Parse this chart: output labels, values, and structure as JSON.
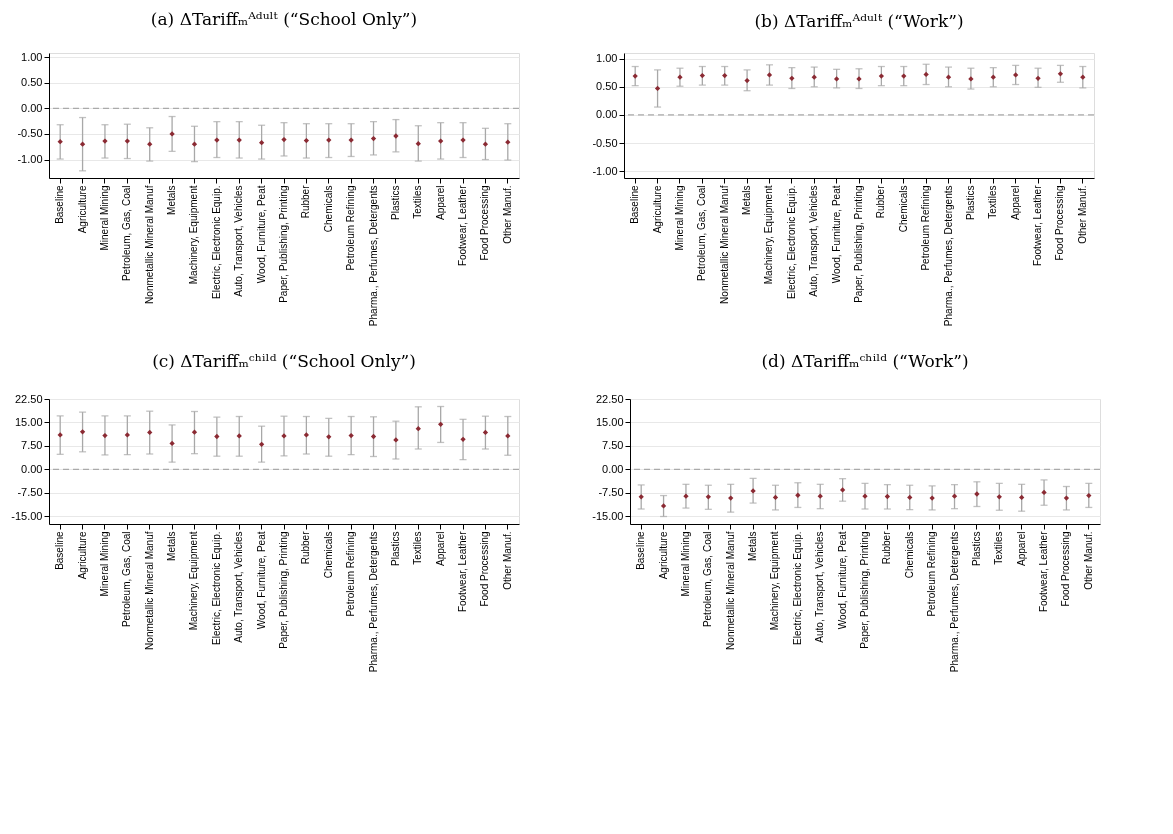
{
  "chart_data": [
    {
      "type": "scatter",
      "title": "(a) ΔTariffₘᴬᵈᵘˡᵗ (“School Only”)",
      "categories": [
        "Baseline",
        "Agriculture",
        "Mineral Mining",
        "Petroleum, Gas, Coal",
        "Nonmetallic Mineral Manuf",
        "Metals",
        "Machinery, Equipment",
        "Electric, Electronic Equip.",
        "Auto, Transport, Vehicles",
        "Wood, Furniture, Peat",
        "Paper, Publishing, Printing",
        "Rubber",
        "Chemicals",
        "Petroleum Refining",
        "Pharma., Perfumes, Detergents",
        "Plastics",
        "Textiles",
        "Apparel",
        "Footwear, Leather",
        "Food Processing",
        "Other Manuf."
      ],
      "color": "#8b2a33",
      "marker": "diamond",
      "values": [
        -0.65,
        -0.7,
        -0.64,
        -0.64,
        -0.7,
        -0.5,
        -0.7,
        -0.62,
        -0.62,
        -0.67,
        -0.61,
        -0.63,
        -0.62,
        -0.62,
        -0.59,
        -0.54,
        -0.69,
        -0.64,
        -0.62,
        -0.7,
        -0.66
      ],
      "errors": [
        [
          -0.99,
          -0.32
        ],
        [
          -1.22,
          -0.18
        ],
        [
          -0.97,
          -0.32
        ],
        [
          -0.98,
          -0.31
        ],
        [
          -1.03,
          -0.38
        ],
        [
          -0.84,
          -0.16
        ],
        [
          -1.04,
          -0.35
        ],
        [
          -0.96,
          -0.26
        ],
        [
          -0.97,
          -0.26
        ],
        [
          -0.99,
          -0.33
        ],
        [
          -0.93,
          -0.28
        ],
        [
          -0.97,
          -0.3
        ],
        [
          -0.96,
          -0.3
        ],
        [
          -0.94,
          -0.3
        ],
        [
          -0.91,
          -0.26
        ],
        [
          -0.85,
          -0.22
        ],
        [
          -1.03,
          -0.34
        ],
        [
          -0.99,
          -0.28
        ],
        [
          -0.96,
          -0.28
        ],
        [
          -1.0,
          -0.39
        ],
        [
          -1.01,
          -0.3
        ]
      ],
      "ylim": [
        -1.36,
        1.08
      ],
      "yticks": [
        {
          "value": -1,
          "label": "-1.00"
        },
        {
          "value": -0.5,
          "label": "-0.50"
        },
        {
          "value": 0,
          "label": "0.00"
        },
        {
          "value": 0.5,
          "label": "0.50"
        },
        {
          "value": 1,
          "label": "1.00"
        }
      ],
      "grid": "y",
      "ref_lines": [
        {
          "axis": "y",
          "value": 0,
          "line_style": "dashed",
          "color": "#aaaaaa"
        }
      ]
    },
    {
      "type": "scatter",
      "title": "(b) ΔTariffₘᴬᵈᵘˡᵗ (“Work”)",
      "categories": [
        "Baseline",
        "Agriculture",
        "Mineral Mining",
        "Petroleum, Gas, Coal",
        "Nonmetallic Mineral Manuf",
        "Metals",
        "Machinery, Equipment",
        "Electric, Electronic Equip.",
        "Auto, Transport, Vehicles",
        "Wood, Furniture, Peat",
        "Paper, Publishing, Printing",
        "Rubber",
        "Chemicals",
        "Petroleum Refining",
        "Pharma., Perfumes, Detergents",
        "Plastics",
        "Textiles",
        "Apparel",
        "Footwear, Leather",
        "Food Processing",
        "Other Manuf."
      ],
      "color": "#8b2a33",
      "marker": "diamond",
      "values": [
        0.69,
        0.47,
        0.67,
        0.7,
        0.7,
        0.61,
        0.71,
        0.65,
        0.67,
        0.64,
        0.64,
        0.69,
        0.69,
        0.72,
        0.67,
        0.64,
        0.67,
        0.71,
        0.65,
        0.73,
        0.67
      ],
      "errors": [
        [
          0.52,
          0.86
        ],
        [
          0.14,
          0.8
        ],
        [
          0.51,
          0.83
        ],
        [
          0.53,
          0.86
        ],
        [
          0.53,
          0.86
        ],
        [
          0.43,
          0.8
        ],
        [
          0.53,
          0.89
        ],
        [
          0.47,
          0.84
        ],
        [
          0.5,
          0.85
        ],
        [
          0.48,
          0.81
        ],
        [
          0.47,
          0.82
        ],
        [
          0.52,
          0.86
        ],
        [
          0.52,
          0.86
        ],
        [
          0.54,
          0.9
        ],
        [
          0.5,
          0.85
        ],
        [
          0.46,
          0.83
        ],
        [
          0.5,
          0.84
        ],
        [
          0.54,
          0.88
        ],
        [
          0.49,
          0.83
        ],
        [
          0.58,
          0.88
        ],
        [
          0.48,
          0.86
        ]
      ],
      "ylim": [
        -1.12,
        1.1
      ],
      "yticks": [
        {
          "value": -1,
          "label": "-1.00"
        },
        {
          "value": -0.5,
          "label": "-0.50"
        },
        {
          "value": 0,
          "label": "0.00"
        },
        {
          "value": 0.5,
          "label": "0.50"
        },
        {
          "value": 1,
          "label": "1.00"
        }
      ],
      "grid": "y",
      "ref_lines": [
        {
          "axis": "y",
          "value": 0,
          "line_style": "dashed",
          "color": "#aaaaaa"
        }
      ]
    },
    {
      "type": "scatter",
      "title": "(c) ΔTariffₘᶜʰⁱˡᵈ (“School Only”)",
      "categories": [
        "Baseline",
        "Agriculture",
        "Mineral Mining",
        "Petroleum, Gas, Coal",
        "Nonmetallic Mineral Manuf",
        "Metals",
        "Machinery, Equipment",
        "Electric, Electronic Equip.",
        "Auto, Transport, Vehicles",
        "Wood, Furniture, Peat",
        "Paper, Publishing, Printing",
        "Rubber",
        "Chemicals",
        "Petroleum Refining",
        "Pharma., Perfumes, Detergents",
        "Plastics",
        "Textiles",
        "Apparel",
        "Footwear, Leather",
        "Food Processing",
        "Other Manuf."
      ],
      "color": "#8b2a33",
      "marker": "diamond",
      "values": [
        11.0,
        12.0,
        10.8,
        11.0,
        11.8,
        8.3,
        11.9,
        10.5,
        10.7,
        8.0,
        10.7,
        11.0,
        10.4,
        10.8,
        10.5,
        9.4,
        13.0,
        14.4,
        9.6,
        11.8,
        10.7
      ],
      "errors": [
        [
          4.8,
          17.1
        ],
        [
          5.6,
          18.3
        ],
        [
          4.6,
          17.1
        ],
        [
          4.7,
          17.1
        ],
        [
          4.9,
          18.6
        ],
        [
          2.3,
          14.2
        ],
        [
          5.0,
          18.5
        ],
        [
          4.2,
          16.7
        ],
        [
          4.2,
          16.9
        ],
        [
          2.3,
          13.8
        ],
        [
          4.3,
          17.0
        ],
        [
          4.9,
          16.9
        ],
        [
          4.2,
          16.3
        ],
        [
          4.7,
          16.9
        ],
        [
          4.1,
          16.8
        ],
        [
          3.3,
          15.4
        ],
        [
          6.5,
          20.0
        ],
        [
          8.6,
          20.1
        ],
        [
          3.1,
          16.0
        ],
        [
          6.5,
          17.0
        ],
        [
          4.5,
          16.9
        ]
      ],
      "ylim": [
        -17.5,
        22.5
      ],
      "yticks": [
        {
          "value": -15,
          "label": "-15.00"
        },
        {
          "value": -7.5,
          "label": "-7.50"
        },
        {
          "value": 0,
          "label": "0.00"
        },
        {
          "value": 7.5,
          "label": "7.50"
        },
        {
          "value": 15,
          "label": "15.00"
        },
        {
          "value": 22.5,
          "label": "22.50"
        }
      ],
      "grid": "y",
      "ref_lines": [
        {
          "axis": "y",
          "value": 0,
          "line_style": "dashed",
          "color": "#aaaaaa"
        }
      ]
    },
    {
      "type": "scatter",
      "title": "(d) ΔTariffₘᶜʰⁱˡᵈ (“Work”)",
      "categories": [
        "Baseline",
        "Agriculture",
        "Mineral Mining",
        "Petroleum, Gas, Coal",
        "Nonmetallic Mineral Manuf",
        "Metals",
        "Machinery, Equipment",
        "Electric, Electronic Equip.",
        "Auto, Transport, Vehicles",
        "Wood, Furniture, Peat",
        "Paper, Publishing, Printing",
        "Rubber",
        "Chemicals",
        "Petroleum Refining",
        "Pharma., Perfumes, Detergents",
        "Plastics",
        "Textiles",
        "Apparel",
        "Footwear, Leather",
        "Food Processing",
        "Other Manuf."
      ],
      "color": "#8b2a33",
      "marker": "diamond",
      "values": [
        -8.8,
        -11.7,
        -8.6,
        -8.8,
        -9.2,
        -6.9,
        -9.0,
        -8.3,
        -8.6,
        -6.6,
        -8.6,
        -8.7,
        -9.0,
        -9.2,
        -8.6,
        -7.9,
        -8.8,
        -9.0,
        -7.4,
        -9.2,
        -8.4
      ],
      "errors": [
        [
          -12.7,
          -5.0
        ],
        [
          -15.1,
          -8.4
        ],
        [
          -12.4,
          -4.8
        ],
        [
          -12.8,
          -5.1
        ],
        [
          -13.7,
          -4.8
        ],
        [
          -10.8,
          -2.9
        ],
        [
          -13.0,
          -5.1
        ],
        [
          -12.2,
          -4.3
        ],
        [
          -12.6,
          -4.8
        ],
        [
          -10.2,
          -3.0
        ],
        [
          -12.7,
          -4.5
        ],
        [
          -12.7,
          -4.9
        ],
        [
          -12.9,
          -5.1
        ],
        [
          -13.0,
          -5.3
        ],
        [
          -12.6,
          -4.9
        ],
        [
          -11.9,
          -4.0
        ],
        [
          -13.1,
          -4.5
        ],
        [
          -13.4,
          -4.8
        ],
        [
          -11.5,
          -3.4
        ],
        [
          -13.0,
          -5.5
        ],
        [
          -12.2,
          -4.5
        ]
      ],
      "ylim": [
        -17.5,
        22.5
      ],
      "yticks": [
        {
          "value": -15,
          "label": "-15.00"
        },
        {
          "value": -7.5,
          "label": "-7.50"
        },
        {
          "value": 0,
          "label": "0.00"
        },
        {
          "value": 7.5,
          "label": "7.50"
        },
        {
          "value": 15,
          "label": "15.00"
        },
        {
          "value": 22.5,
          "label": "22.50"
        }
      ],
      "grid": "y",
      "ref_lines": [
        {
          "axis": "y",
          "value": 0,
          "line_style": "dashed",
          "color": "#aaaaaa"
        }
      ]
    }
  ]
}
